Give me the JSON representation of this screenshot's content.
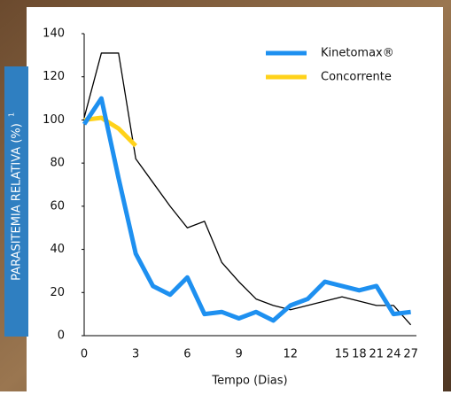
{
  "chart_data": {
    "type": "line",
    "y_label": "PARASITEMIA RELATIVA (%)",
    "y_label_sup": "1",
    "x_label": "Tempo (Dias)",
    "categories": [
      "0",
      null,
      null,
      "3",
      null,
      null,
      "6",
      null,
      null,
      "9",
      null,
      null,
      "12",
      null,
      null,
      "15",
      "18",
      "21",
      "24",
      "27"
    ],
    "series": [
      {
        "color": "#000000",
        "values": [
          101,
          131,
          131,
          82,
          71,
          60,
          50,
          53,
          34,
          25,
          17,
          14,
          12,
          14,
          16,
          18,
          16,
          14,
          14,
          5
        ]
      },
      {
        "name": "Kinetomax®",
        "color": "#1e90f0",
        "values": [
          98,
          110,
          73,
          38,
          23,
          19,
          27,
          10,
          11,
          8,
          11,
          7,
          14,
          17,
          25,
          23,
          21,
          23,
          10,
          11
        ]
      },
      {
        "name": "Concorrente",
        "color": "#ffd21a",
        "values": [
          100,
          101,
          96,
          88,
          null,
          null,
          null,
          null,
          null,
          null,
          null,
          null,
          null,
          null,
          null,
          null,
          null,
          null,
          null,
          null
        ]
      }
    ],
    "ylim": [
      0,
      140
    ],
    "yticks": [
      0,
      20,
      40,
      60,
      80,
      100,
      120,
      140
    ],
    "legend": "top-right"
  }
}
